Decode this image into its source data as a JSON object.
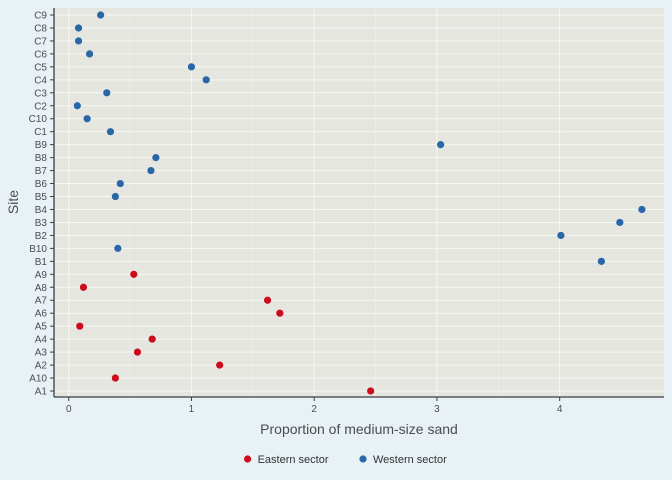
{
  "chart_data": {
    "type": "scatter",
    "title": "",
    "xlabel": "Proportion of medium-size sand",
    "ylabel": "Site",
    "xlim": [
      -0.12,
      4.85
    ],
    "xticks": [
      0,
      1,
      2,
      3,
      4
    ],
    "xtick_labels": [
      "0",
      "1",
      "2",
      "3",
      "4"
    ],
    "categories": [
      "A1",
      "A10",
      "A2",
      "A3",
      "A4",
      "A5",
      "A6",
      "A7",
      "A8",
      "A9",
      "B1",
      "B10",
      "B2",
      "B3",
      "B4",
      "B5",
      "B6",
      "B7",
      "B8",
      "B9",
      "C1",
      "C10",
      "C2",
      "C3",
      "C4",
      "C5",
      "C6",
      "C7",
      "C8",
      "C9"
    ],
    "grid": true,
    "legend_position": "bottom",
    "series": [
      {
        "name": "Eastern sector",
        "color": "#cc0c1c",
        "points": [
          {
            "site": "A1",
            "x": 2.46
          },
          {
            "site": "A10",
            "x": 0.38
          },
          {
            "site": "A2",
            "x": 1.23
          },
          {
            "site": "A3",
            "x": 0.56
          },
          {
            "site": "A4",
            "x": 0.68
          },
          {
            "site": "A5",
            "x": 0.09
          },
          {
            "site": "A6",
            "x": 1.72
          },
          {
            "site": "A7",
            "x": 1.62
          },
          {
            "site": "A8",
            "x": 0.12
          },
          {
            "site": "A9",
            "x": 0.53
          }
        ]
      },
      {
        "name": "Western sector",
        "color": "#2a67a8",
        "points": [
          {
            "site": "B1",
            "x": 4.34
          },
          {
            "site": "B10",
            "x": 0.4
          },
          {
            "site": "B2",
            "x": 4.01
          },
          {
            "site": "B3",
            "x": 4.49
          },
          {
            "site": "B4",
            "x": 4.67
          },
          {
            "site": "B5",
            "x": 0.38
          },
          {
            "site": "B6",
            "x": 0.42
          },
          {
            "site": "B7",
            "x": 0.67
          },
          {
            "site": "B8",
            "x": 0.71
          },
          {
            "site": "B9",
            "x": 3.03
          },
          {
            "site": "C1",
            "x": 0.34
          },
          {
            "site": "C10",
            "x": 0.15
          },
          {
            "site": "C2",
            "x": 0.07
          },
          {
            "site": "C3",
            "x": 0.31
          },
          {
            "site": "C4",
            "x": 1.12
          },
          {
            "site": "C5",
            "x": 1.0
          },
          {
            "site": "C6",
            "x": 0.17
          },
          {
            "site": "C7",
            "x": 0.08
          },
          {
            "site": "C8",
            "x": 0.08
          },
          {
            "site": "C9",
            "x": 0.26
          }
        ]
      }
    ]
  }
}
